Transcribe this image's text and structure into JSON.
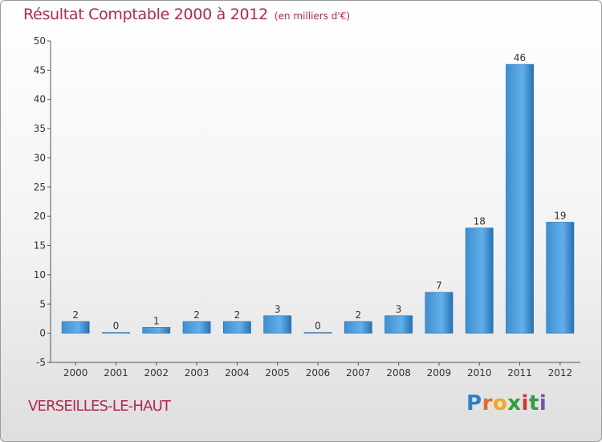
{
  "header": {
    "title": "Résultat Comptable 2000 à 2012",
    "subtitle": "(en milliers d'€)"
  },
  "footer": {
    "place": "VERSEILLES-LE-HAUT",
    "logo_letters": [
      "P",
      "r",
      "o",
      "x",
      "i",
      "t",
      "i"
    ],
    "logo_colors": [
      "#2e7fc4",
      "#e8692a",
      "#f0a81c",
      "#2e9e3f",
      "#d93636",
      "#2e9e3f",
      "#7a4fb8"
    ]
  },
  "chart_data": {
    "type": "bar",
    "categories": [
      "2000",
      "2001",
      "2002",
      "2003",
      "2004",
      "2005",
      "2006",
      "2007",
      "2008",
      "2009",
      "2010",
      "2011",
      "2012"
    ],
    "values": [
      2,
      0,
      1,
      2,
      2,
      3,
      0,
      2,
      3,
      7,
      18,
      46,
      19
    ],
    "value_labels": [
      "2",
      "0",
      "1",
      "2",
      "2",
      "3",
      "0",
      "2",
      "3",
      "7",
      "18",
      "46",
      "19"
    ],
    "yticks": [
      -5,
      0,
      5,
      10,
      15,
      20,
      25,
      30,
      35,
      40,
      45,
      50
    ],
    "ylim": [
      -5,
      50
    ],
    "xlabel": "",
    "ylabel": "",
    "grid": false,
    "bar_color": "#3d8fd1",
    "bar_color_light": "#62b0ea",
    "bar_color_dark": "#2672b5"
  }
}
